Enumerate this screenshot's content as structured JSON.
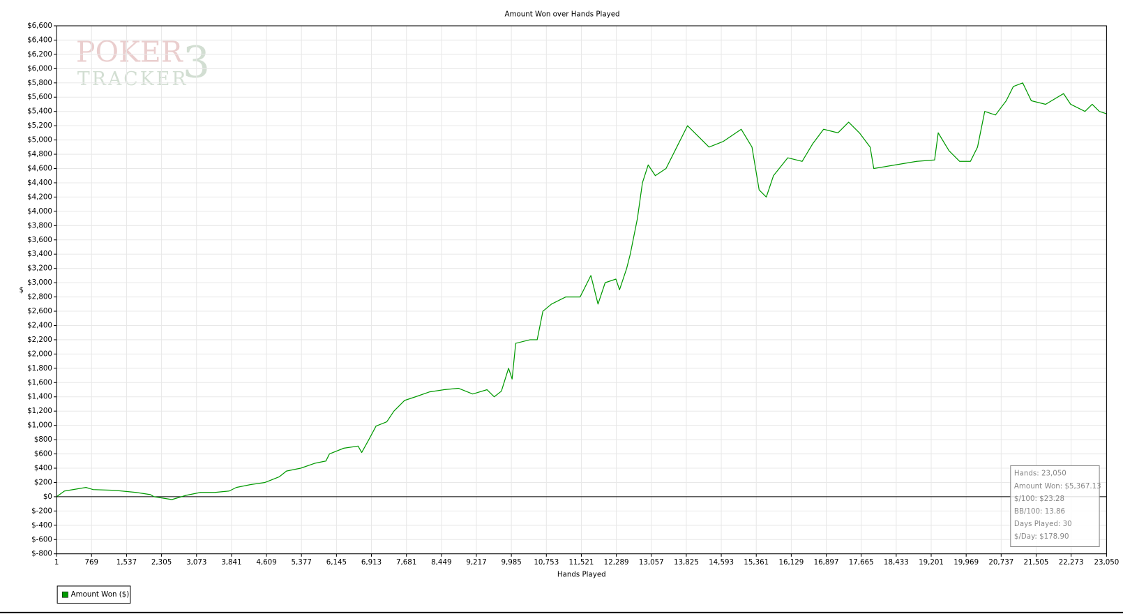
{
  "chart_data": {
    "type": "line",
    "title": "Amount Won over Hands Played",
    "x_label": "Hands Played",
    "y_label": "$",
    "watermark": [
      "POKER",
      "TRACKER",
      "3"
    ],
    "grid": true,
    "legend": "bottom-left",
    "zero_line": true,
    "xlim": [
      1,
      23050
    ],
    "ylim": [
      -800,
      6600
    ],
    "xticks": [
      1,
      769,
      {
        "value": 1537,
        "label": "1,537"
      },
      {
        "value": 2305,
        "label": "2,305"
      },
      {
        "value": 3073,
        "label": "3,073"
      },
      {
        "value": 3841,
        "label": "3,841"
      },
      {
        "value": 4609,
        "label": "4,609"
      },
      {
        "value": 5377,
        "label": "5,377"
      },
      {
        "value": 6145,
        "label": "6,145"
      },
      {
        "value": 6913,
        "label": "6,913"
      },
      {
        "value": 7681,
        "label": "7,681"
      },
      {
        "value": 8449,
        "label": "8,449"
      },
      {
        "value": 9217,
        "label": "9,217"
      },
      {
        "value": 9985,
        "label": "9,985"
      },
      {
        "value": 10753,
        "label": "10,753"
      },
      {
        "value": 11521,
        "label": "11,521"
      },
      {
        "value": 12289,
        "label": "12,289"
      },
      {
        "value": 13057,
        "label": "13,057"
      },
      {
        "value": 13825,
        "label": "13,825"
      },
      {
        "value": 14593,
        "label": "14,593"
      },
      {
        "value": 15361,
        "label": "15,361"
      },
      {
        "value": 16129,
        "label": "16,129"
      },
      {
        "value": 16897,
        "label": "16,897"
      },
      {
        "value": 17665,
        "label": "17,665"
      },
      {
        "value": 18433,
        "label": "18,433"
      },
      {
        "value": 19201,
        "label": "19,201"
      },
      {
        "value": 19969,
        "label": "19,969"
      },
      {
        "value": 20737,
        "label": "20,737"
      },
      {
        "value": 21505,
        "label": "21,505"
      },
      {
        "value": 22273,
        "label": "22,273"
      },
      {
        "value": 23050,
        "label": "23,050"
      }
    ],
    "yticks": [
      {
        "value": -800,
        "label": "$-800"
      },
      {
        "value": -600,
        "label": "$-600"
      },
      {
        "value": -400,
        "label": "$-400"
      },
      {
        "value": -200,
        "label": "$-200"
      },
      {
        "value": 0,
        "label": "$0"
      },
      {
        "value": 200,
        "label": "$200"
      },
      {
        "value": 400,
        "label": "$400"
      },
      {
        "value": 600,
        "label": "$600"
      },
      {
        "value": 800,
        "label": "$800"
      },
      {
        "value": 1000,
        "label": "$1,000"
      },
      {
        "value": 1200,
        "label": "$1,200"
      },
      {
        "value": 1400,
        "label": "$1,400"
      },
      {
        "value": 1600,
        "label": "$1,600"
      },
      {
        "value": 1800,
        "label": "$1,800"
      },
      {
        "value": 2000,
        "label": "$2,000"
      },
      {
        "value": 2200,
        "label": "$2,200"
      },
      {
        "value": 2400,
        "label": "$2,400"
      },
      {
        "value": 2600,
        "label": "$2,600"
      },
      {
        "value": 2800,
        "label": "$2,800"
      },
      {
        "value": 3000,
        "label": "$3,000"
      },
      {
        "value": 3200,
        "label": "$3,200"
      },
      {
        "value": 3400,
        "label": "$3,400"
      },
      {
        "value": 3600,
        "label": "$3,600"
      },
      {
        "value": 3800,
        "label": "$3,800"
      },
      {
        "value": 4000,
        "label": "$4,000"
      },
      {
        "value": 4200,
        "label": "$4,200"
      },
      {
        "value": 4400,
        "label": "$4,400"
      },
      {
        "value": 4600,
        "label": "$4,600"
      },
      {
        "value": 4800,
        "label": "$4,800"
      },
      {
        "value": 5000,
        "label": "$5,000"
      },
      {
        "value": 5200,
        "label": "$5,200"
      },
      {
        "value": 5400,
        "label": "$5,400"
      },
      {
        "value": 5600,
        "label": "$5,600"
      },
      {
        "value": 5800,
        "label": "$5,800"
      },
      {
        "value": 6000,
        "label": "$6,000"
      },
      {
        "value": 6200,
        "label": "$6,200"
      },
      {
        "value": 6400,
        "label": "$6,400"
      },
      {
        "value": 6600,
        "label": "$6,600"
      }
    ],
    "x": [
      1,
      174,
      646,
      803,
      1274,
      1746,
      2061,
      2139,
      2532,
      2847,
      3161,
      3476,
      3790,
      3947,
      4262,
      4576,
      4891,
      5048,
      5362,
      5677,
      5913,
      5991,
      6306,
      6620,
      6699,
      6856,
      7014,
      7249,
      7407,
      7642,
      7878,
      8193,
      8507,
      8822,
      9136,
      9451,
      9608,
      9766,
      9923,
      10001,
      10080,
      10394,
      10551,
      10677,
      10866,
      11180,
      11494,
      11730,
      11887,
      12044,
      12280,
      12359,
      12516,
      12595,
      12752,
      12862,
      12988,
      13145,
      13380,
      13616,
      13852,
      14088,
      14324,
      14638,
      15031,
      15267,
      15424,
      15581,
      15739,
      16053,
      16368,
      16603,
      16839,
      17154,
      17389,
      17625,
      17861,
      17940,
      18411,
      18883,
      19276,
      19355,
      19591,
      19826,
      20062,
      20218,
      20376,
      20612,
      20848,
      21005,
      21210,
      21398,
      21713,
      22106,
      22263,
      22577,
      22735,
      22892,
      23050
    ],
    "series": [
      {
        "name": "Amount Won ($)",
        "color": "#009900",
        "values": [
          0,
          80,
          130,
          100,
          90,
          60,
          30,
          0,
          -40,
          20,
          60,
          60,
          80,
          130,
          170,
          200,
          280,
          360,
          400,
          470,
          500,
          600,
          680,
          710,
          620,
          800,
          990,
          1050,
          1200,
          1350,
          1400,
          1470,
          1500,
          1520,
          1440,
          1500,
          1400,
          1480,
          1800,
          1650,
          2150,
          2200,
          2200,
          2600,
          2700,
          2800,
          2800,
          3100,
          2700,
          3000,
          3050,
          2900,
          3200,
          3400,
          3900,
          4400,
          4650,
          4500,
          4600,
          4900,
          5200,
          5050,
          4900,
          4980,
          5150,
          4900,
          4300,
          4200,
          4500,
          4750,
          4700,
          4950,
          5150,
          5100,
          5250,
          5100,
          4900,
          4600,
          4650,
          4700,
          4720,
          5100,
          4850,
          4700,
          4700,
          4900,
          5400,
          5350,
          5550,
          5750,
          5800,
          5550,
          5500,
          5650,
          5500,
          5400,
          5500,
          5400,
          5367.13
        ]
      }
    ],
    "annotations": [
      "Hands: 23,050",
      "Amount Won: $5,367.13",
      "$/100: $23.28",
      "BB/100: 13.86",
      "Days Played: 30",
      "$/Day: $178.90"
    ]
  }
}
